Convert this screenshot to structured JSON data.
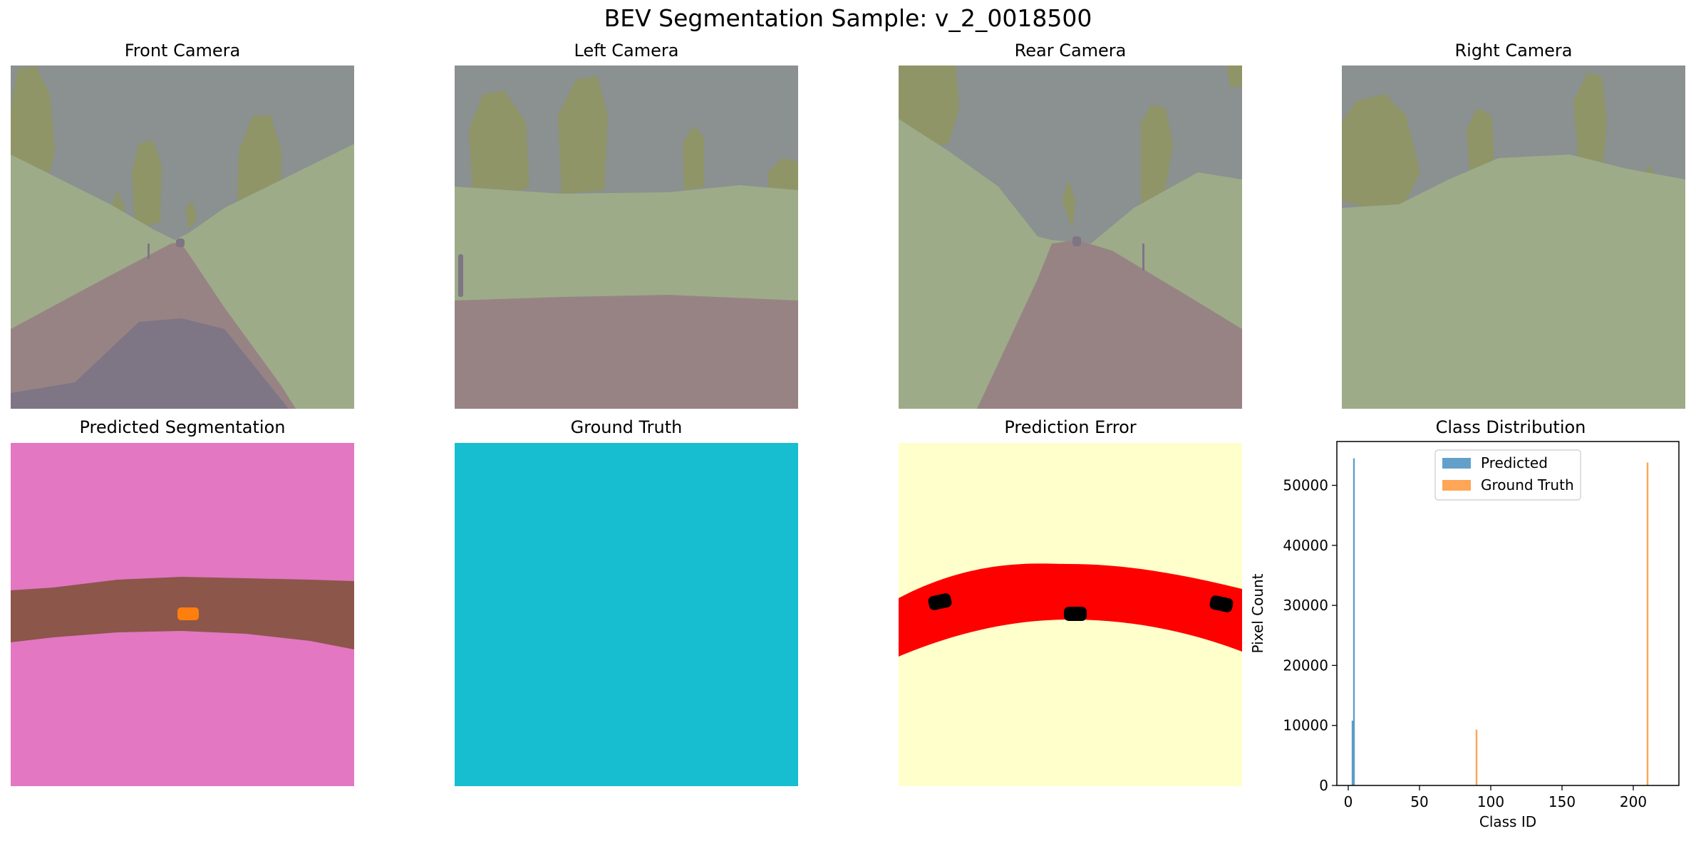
{
  "figure": {
    "suptitle": "BEV Segmentation Sample: v_2_0018500"
  },
  "panels": {
    "front": "Front Camera",
    "left": "Left Camera",
    "rear": "Rear Camera",
    "right": "Right Camera",
    "predicted": "Predicted Segmentation",
    "ground_truth": "Ground Truth",
    "error": "Prediction Error",
    "distribution": "Class Distribution"
  },
  "colors": {
    "sky": "#8b9090",
    "grass": "#9dab89",
    "tree": "#8f9567",
    "road": "#988384",
    "ego": "#7e7585",
    "pred_bg": "#e377c2",
    "pred_road": "#8c564b",
    "pred_car": "#ff7f0e",
    "gt_fill": "#17becf",
    "err_bg": "#ffffcc",
    "err_road": "#ff0000",
    "err_car": "#000000",
    "predicted_series": "#1f77b4",
    "ground_truth_series": "#ff7f0e"
  },
  "chart_data": {
    "type": "bar",
    "title": "Class Distribution",
    "xlabel": "Class ID",
    "ylabel": "Pixel Count",
    "xlim": [
      -8,
      232
    ],
    "ylim": [
      0,
      57300
    ],
    "xticks": [
      0,
      50,
      100,
      150,
      200
    ],
    "yticks": [
      0,
      10000,
      20000,
      30000,
      40000,
      50000
    ],
    "legend_position": "upper center",
    "series": [
      {
        "name": "Predicted",
        "color": "#1f77b4",
        "points": [
          {
            "x": 3,
            "y": 10800
          },
          {
            "x": 4,
            "y": 54500
          }
        ]
      },
      {
        "name": "Ground Truth",
        "color": "#ff7f0e",
        "points": [
          {
            "x": 90,
            "y": 9300
          },
          {
            "x": 210,
            "y": 53800
          }
        ]
      }
    ]
  }
}
